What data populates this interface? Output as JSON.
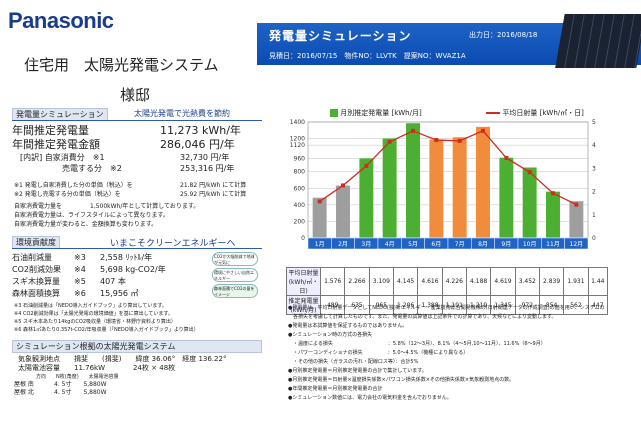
{
  "brand": "Panasonic",
  "title1": "住宅用　太陽光発電システム",
  "title2": "様邸",
  "header": {
    "title": "発電量シミュレーション",
    "date": "出力日：2016/08/18",
    "meta": "見積日：2016/07/15　物件NO：LLVTK　提案NO：WVAZ1A"
  },
  "sim": {
    "tag": "発電量シミュレーション",
    "subtitle": "太陽光発電で光熱費を節約",
    "r1_label": "年間推定発電量",
    "r1_value": "11,273 kWh/年",
    "r2_label": "年間推定発電金額",
    "r2_value": "286,046 円/年",
    "r3_label": "[内訳] 自家消費分　※1",
    "r3_value": "32,730 円/年",
    "r4_label": "売電する分　※2",
    "r4_value": "253,316 円/年",
    "note1": "※1 発電し自家消費した分の単価（税込）を",
    "note1_value": "21.82 円/kWh にて計算",
    "note2": "※2 発電し売電する分の単価（税込）を",
    "note2_value": "25.92 円/kWh にて計算",
    "note3": "自家消費電力量を",
    "note3_value": "1,500kWh/年として計算しております。",
    "note4": "自家消費電力量は、ライフスタイルによって異なります。",
    "note5": "自家消費電力量が変わると、金額換算も変わります。"
  },
  "eco": {
    "tag": "環境貢献度",
    "subtitle": "いまこそクリーンエネルギーへ",
    "rows": [
      {
        "label": "石油削減量",
        "note": "※3",
        "value": "2,558 ﾘｯﾄﾙ/年"
      },
      {
        "label": "CO2削減効果",
        "note": "※4",
        "value": "5,698 kg-CO2/年"
      },
      {
        "label": "スギ木換算量",
        "note": "※5",
        "value": "407 本"
      },
      {
        "label": "森林面積換算",
        "note": "※6",
        "value": "15,956 ㎡"
      }
    ],
    "icons": [
      "CO2が大幅削減で地球が元気に",
      "環境にやさしい自然エネルギー",
      "森林面積でCO2の量をイメージ"
    ],
    "notes": [
      "※3 石油削減量は「NEDO導入ガイドブック」より算出しています。",
      "※4 CO2削減効果は「太陽光発電の環境価値」を基に算出しています。",
      "※5 スギ木本あたり14kgのCO2吸収量（環境省・林野庁資料より算出）",
      "※6 森林1㎡あたり0.357t-CO2/年吸収量（「NEDO導入ガイドブック」より算出）"
    ]
  },
  "system": {
    "tag": "シミュレーション根拠の太陽光発電システム",
    "loc_label": "気象観測地点",
    "loc": "揖斐　　(揖斐)　　緯度 36.06°　経度 136.22°",
    "cap_label": "太陽電池容量",
    "cap": "11.76kW　　　　24枚 × 48枚",
    "head": "方向　　N枚(角度)　　太陽電池容量",
    "rows": [
      {
        "roof": "屋根 南",
        "val": "4. 5寸　　5,880W"
      },
      {
        "roof": "屋根 北",
        "val": "4. 5寸　　5,880W"
      }
    ]
  },
  "chart_data": {
    "type": "bar",
    "categories": [
      "1月",
      "2月",
      "3月",
      "4月",
      "5月",
      "6月",
      "7月",
      "8月",
      "9月",
      "10月",
      "11月",
      "12月"
    ],
    "series": [
      {
        "name": "月別推定発電量 [kWh/月]",
        "values": [
          489,
          635,
          965,
          1206,
          1388,
          1191,
          1219,
          1345,
          972,
          854,
          562,
          447
        ]
      },
      {
        "name": "平均日射量 [kWh/㎡・日]",
        "values": [
          1.576,
          2.266,
          3.109,
          4.145,
          4.616,
          4.226,
          4.188,
          4.619,
          3.452,
          2.839,
          1.931,
          1.44
        ]
      }
    ],
    "ylim_left": [
      0,
      1400
    ],
    "yticks_left": [
      "0",
      "200",
      "400",
      "600",
      "800",
      "960",
      "1120",
      "1200",
      "1400"
    ],
    "ylim_right": [
      0,
      5
    ],
    "yticks_right": [
      "0",
      "1",
      "2",
      "3",
      "4",
      "5"
    ],
    "bar_colors": [
      "#9e9e9e",
      "#9e9e9e",
      "#4caf32",
      "#4caf32",
      "#4caf32",
      "#f08c3c",
      "#f08c3c",
      "#f08c3c",
      "#4caf32",
      "#4caf32",
      "#4caf32",
      "#9e9e9e"
    ],
    "line_color": "#d52a1f",
    "row1_label": "平均日射量(kWh/㎡・日)",
    "row2_label": "推定発電量(kWh/月)",
    "row1_values": [
      "1.576",
      "2.266",
      "3.109",
      "4.145",
      "4.616",
      "4.226",
      "4.188",
      "4.619",
      "3.452",
      "2.839",
      "1.931",
      "1.44"
    ],
    "row2_values": [
      "489",
      "635",
      "965",
      "1,206",
      "1,388",
      "1,191",
      "1,219",
      "1,345",
      "972",
      "854",
      "562",
      "447"
    ]
  },
  "notes_right": [
    "●発電量は、平均日射量データとしてNEDO(独)新エネルギー・産業技術総合開発機構の(日射関連データの作成調査)の値を用い、システムの",
    "　各損失を考慮して計算したものです。また、発電量の試算値は上記条件での計算であり、天候などにより変動します。",
    "●発電量は本試算値を保証するものではありません。",
    "●シミュレーション時の方式の各損失",
    "　・温度による損失　　　　　　　　　　　：5.8%（12～3月）、8.1%（4～5月,10～11月）、11.6%（6～9月）",
    "　・パワーコンディショナの損失　　　　　：5.0～4.5%（機種により異なる）",
    "　・その他の損失（ガラスの汚れ・配線ロス等）：合計5%",
    "●月別推定発電量＝月別推定発電量の合計で集計しています。",
    "●月別推定発電量＝日射量×温度損失係数×パワコン損失係数×その他損失係数×気象観測地点の数。",
    "●年間推定発電量＝月別推定発電量の合計",
    "●シミュレーション数値には、電力会社の電気料金を含んでおりません。"
  ]
}
